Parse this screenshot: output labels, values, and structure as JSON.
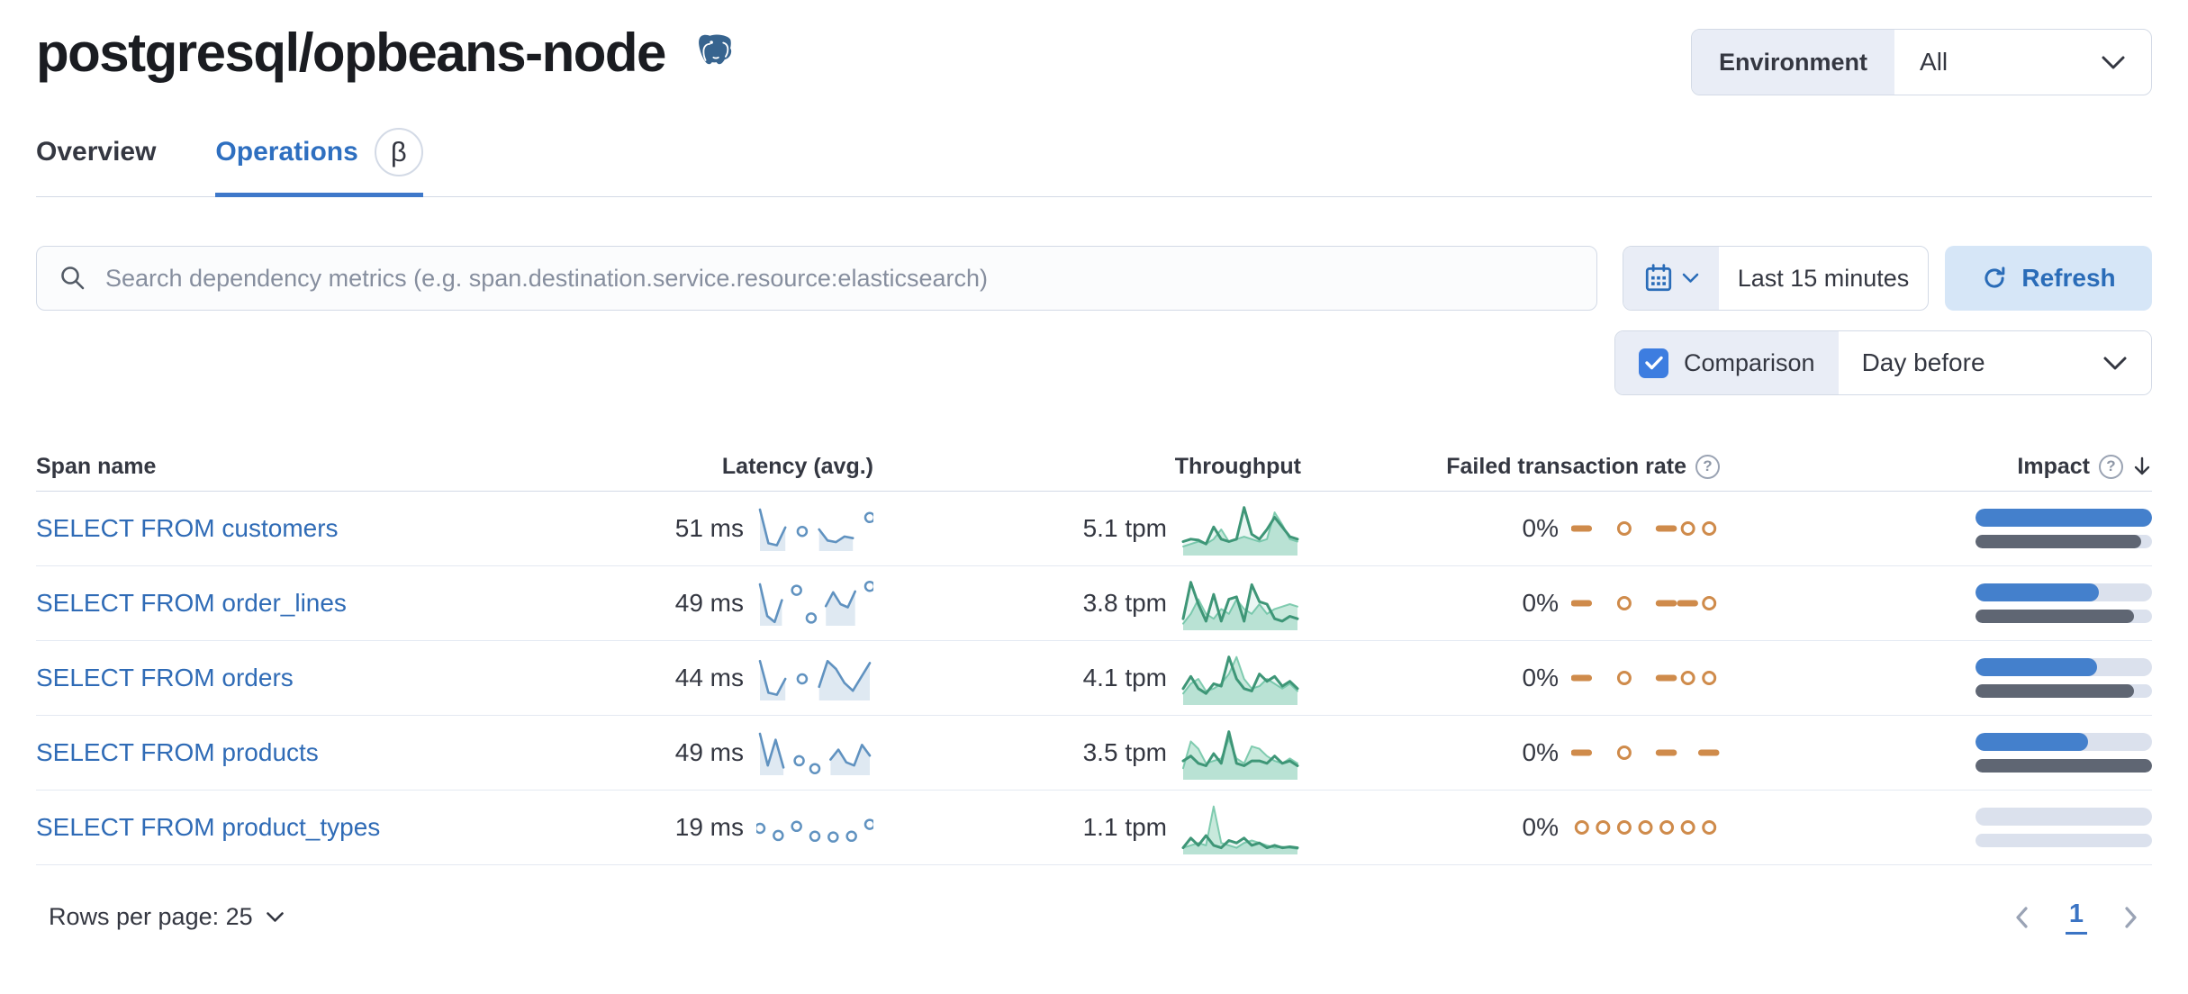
{
  "header": {
    "title": "postgresql/opbeans-node",
    "environment_label": "Environment",
    "environment_value": "All"
  },
  "icons": {
    "logo": "postgresql-elephant",
    "search": "magnifier",
    "calendar": "calendar",
    "refresh": "circular-arrow",
    "chevron": "chevron-down",
    "help": "question-circle",
    "sort": "arrow-down",
    "prev": "chevron-left",
    "next": "chevron-right",
    "check": "checkmark"
  },
  "tabs": [
    {
      "label": "Overview",
      "active": false
    },
    {
      "label": "Operations",
      "badge": "β",
      "active": true
    }
  ],
  "toolbar": {
    "search_placeholder": "Search dependency metrics (e.g. span.destination.service.resource:elasticsearch)",
    "time_range": "Last 15 minutes",
    "refresh_label": "Refresh"
  },
  "comparison": {
    "label": "Comparison",
    "checked": true,
    "value": "Day before"
  },
  "colors": {
    "accent_blue": "#2e6fc0",
    "link_blue": "#2f6bb6",
    "latency_spark": "#6092C0",
    "throughput_spark": "#3e9677",
    "failed_spark": "#cf8b4b",
    "impact_bar": "#4480cc",
    "impact_prev_bar": "#5f6673"
  },
  "table": {
    "columns": [
      {
        "label": "Span name"
      },
      {
        "label": "Latency (avg.)"
      },
      {
        "label": "Throughput"
      },
      {
        "label": "Failed transaction rate",
        "help": true
      },
      {
        "label": "Impact",
        "help": true,
        "sorted": "desc"
      }
    ],
    "rows": [
      {
        "span_name": "SELECT FROM customers",
        "latency": "51 ms",
        "throughput": "5.1 tpm",
        "failed_rate": "0%",
        "latency_spark": [
          1,
          0.15,
          0.1,
          0.55,
          null,
          0.45,
          null,
          0.5,
          0.22,
          0.18,
          0.32,
          0.28,
          null,
          0.8
        ],
        "throughput_spark": [
          0.25,
          0.3,
          0.28,
          0.2,
          0.55,
          0.3,
          0.25,
          0.3,
          0.95,
          0.4,
          0.3,
          0.5,
          0.75,
          0.55,
          0.35,
          0.3
        ],
        "throughput_spark_prev": [
          0.15,
          0.2,
          0.25,
          0.2,
          0.3,
          0.5,
          0.25,
          0.3,
          0.35,
          0.3,
          0.25,
          0.3,
          0.85,
          0.6,
          0.3,
          0.25
        ],
        "failed_pattern": "- o -oo",
        "impact": {
          "current": 100,
          "previous": 94
        }
      },
      {
        "span_name": "SELECT FROM order_lines",
        "latency": "49 ms",
        "throughput": "3.8 tpm",
        "failed_rate": "0%",
        "latency_spark": [
          1,
          0.2,
          0.05,
          0.6,
          null,
          0.85,
          null,
          0.15,
          null,
          0.45,
          0.8,
          0.5,
          0.42,
          0.82,
          null,
          0.95
        ],
        "throughput_spark": [
          0.2,
          0.95,
          0.5,
          0.15,
          0.7,
          0.15,
          0.6,
          0.65,
          0.15,
          0.9,
          0.55,
          0.5,
          0.2,
          0.15,
          0.25,
          0.2
        ],
        "throughput_spark_prev": [
          0.1,
          0.3,
          0.6,
          0.3,
          0.2,
          0.4,
          0.3,
          0.6,
          0.4,
          0.3,
          0.5,
          0.3,
          0.4,
          0.45,
          0.5,
          0.45
        ],
        "failed_pattern": "- o --o",
        "impact": {
          "current": 70,
          "previous": 90
        }
      },
      {
        "span_name": "SELECT FROM orders",
        "latency": "44 ms",
        "throughput": "4.1 tpm",
        "failed_rate": "0%",
        "latency_spark": [
          0.95,
          0.15,
          0.1,
          0.5,
          null,
          0.5,
          null,
          0.3,
          0.95,
          0.75,
          0.4,
          0.2,
          0.55,
          0.9
        ],
        "throughput_spark": [
          0.3,
          0.55,
          0.3,
          0.2,
          0.4,
          0.35,
          0.95,
          0.5,
          0.3,
          0.25,
          0.6,
          0.45,
          0.55,
          0.35,
          0.45,
          0.3
        ],
        "throughput_spark_prev": [
          0.2,
          0.4,
          0.5,
          0.25,
          0.3,
          0.4,
          0.6,
          0.95,
          0.5,
          0.3,
          0.35,
          0.5,
          0.4,
          0.3,
          0.4,
          0.25
        ],
        "failed_pattern": "- o -oo",
        "impact": {
          "current": 69,
          "previous": 90
        }
      },
      {
        "span_name": "SELECT FROM products",
        "latency": "49 ms",
        "throughput": "3.5 tpm",
        "failed_rate": "0%",
        "latency_spark": [
          1,
          0.2,
          0.85,
          0.15,
          null,
          0.32,
          null,
          0.12,
          null,
          0.35,
          0.6,
          0.28,
          0.2,
          0.72,
          0.45
        ],
        "throughput_spark": [
          0.35,
          0.45,
          0.3,
          0.25,
          0.5,
          0.3,
          0.95,
          0.3,
          0.25,
          0.35,
          0.35,
          0.3,
          0.45,
          0.3,
          0.35,
          0.25
        ],
        "throughput_spark_prev": [
          0.2,
          0.75,
          0.6,
          0.3,
          0.35,
          0.4,
          0.8,
          0.4,
          0.3,
          0.65,
          0.6,
          0.45,
          0.35,
          0.3,
          0.4,
          0.3
        ],
        "failed_pattern": "- o - -",
        "impact": {
          "current": 64,
          "previous": 100
        }
      },
      {
        "span_name": "SELECT FROM product_types",
        "latency": "19 ms",
        "throughput": "1.1 tpm",
        "failed_rate": "0%",
        "latency_spark": [
          0.5,
          null,
          0.32,
          null,
          0.55,
          null,
          0.3,
          null,
          0.28,
          null,
          0.3,
          null,
          0.6
        ],
        "throughput_spark": [
          0.1,
          0.3,
          0.15,
          0.35,
          0.15,
          0.1,
          0.25,
          0.2,
          0.3,
          0.15,
          0.2,
          0.1,
          0.15,
          0.1,
          0.12,
          0.1
        ],
        "throughput_spark_prev": [
          0.1,
          0.15,
          0.2,
          0.15,
          0.95,
          0.2,
          0.15,
          0.1,
          0.2,
          0.25,
          0.2,
          0.15,
          0.1,
          0.12,
          0.1,
          0.08
        ],
        "failed_pattern": "ooooooo",
        "impact": {
          "current": 0,
          "previous": 0
        }
      }
    ]
  },
  "footer": {
    "rows_per_page": "Rows per page: 25",
    "page": "1"
  }
}
